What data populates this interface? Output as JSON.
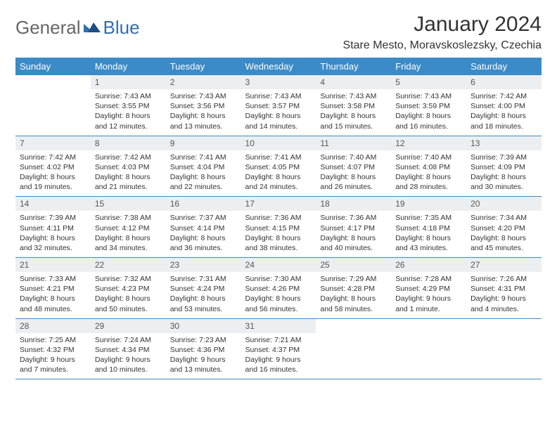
{
  "brand": {
    "part1": "General",
    "part2": "Blue"
  },
  "title": "January 2024",
  "location": "Stare Mesto, Moravskoslezsky, Czechia",
  "colors": {
    "header_bg": "#3b8bc8",
    "header_fg": "#ffffff",
    "daynum_bg": "#eceff1",
    "row_border": "#3b8bc8",
    "brand_gray": "#666666",
    "brand_blue": "#2f6fb0",
    "text": "#333333",
    "background": "#ffffff"
  },
  "calendar": {
    "type": "table",
    "columns": [
      "Sunday",
      "Monday",
      "Tuesday",
      "Wednesday",
      "Thursday",
      "Friday",
      "Saturday"
    ],
    "weeks": [
      [
        null,
        {
          "n": "1",
          "sr": "Sunrise: 7:43 AM",
          "ss": "Sunset: 3:55 PM",
          "dl1": "Daylight: 8 hours",
          "dl2": "and 12 minutes."
        },
        {
          "n": "2",
          "sr": "Sunrise: 7:43 AM",
          "ss": "Sunset: 3:56 PM",
          "dl1": "Daylight: 8 hours",
          "dl2": "and 13 minutes."
        },
        {
          "n": "3",
          "sr": "Sunrise: 7:43 AM",
          "ss": "Sunset: 3:57 PM",
          "dl1": "Daylight: 8 hours",
          "dl2": "and 14 minutes."
        },
        {
          "n": "4",
          "sr": "Sunrise: 7:43 AM",
          "ss": "Sunset: 3:58 PM",
          "dl1": "Daylight: 8 hours",
          "dl2": "and 15 minutes."
        },
        {
          "n": "5",
          "sr": "Sunrise: 7:43 AM",
          "ss": "Sunset: 3:59 PM",
          "dl1": "Daylight: 8 hours",
          "dl2": "and 16 minutes."
        },
        {
          "n": "6",
          "sr": "Sunrise: 7:42 AM",
          "ss": "Sunset: 4:00 PM",
          "dl1": "Daylight: 8 hours",
          "dl2": "and 18 minutes."
        }
      ],
      [
        {
          "n": "7",
          "sr": "Sunrise: 7:42 AM",
          "ss": "Sunset: 4:02 PM",
          "dl1": "Daylight: 8 hours",
          "dl2": "and 19 minutes."
        },
        {
          "n": "8",
          "sr": "Sunrise: 7:42 AM",
          "ss": "Sunset: 4:03 PM",
          "dl1": "Daylight: 8 hours",
          "dl2": "and 21 minutes."
        },
        {
          "n": "9",
          "sr": "Sunrise: 7:41 AM",
          "ss": "Sunset: 4:04 PM",
          "dl1": "Daylight: 8 hours",
          "dl2": "and 22 minutes."
        },
        {
          "n": "10",
          "sr": "Sunrise: 7:41 AM",
          "ss": "Sunset: 4:05 PM",
          "dl1": "Daylight: 8 hours",
          "dl2": "and 24 minutes."
        },
        {
          "n": "11",
          "sr": "Sunrise: 7:40 AM",
          "ss": "Sunset: 4:07 PM",
          "dl1": "Daylight: 8 hours",
          "dl2": "and 26 minutes."
        },
        {
          "n": "12",
          "sr": "Sunrise: 7:40 AM",
          "ss": "Sunset: 4:08 PM",
          "dl1": "Daylight: 8 hours",
          "dl2": "and 28 minutes."
        },
        {
          "n": "13",
          "sr": "Sunrise: 7:39 AM",
          "ss": "Sunset: 4:09 PM",
          "dl1": "Daylight: 8 hours",
          "dl2": "and 30 minutes."
        }
      ],
      [
        {
          "n": "14",
          "sr": "Sunrise: 7:39 AM",
          "ss": "Sunset: 4:11 PM",
          "dl1": "Daylight: 8 hours",
          "dl2": "and 32 minutes."
        },
        {
          "n": "15",
          "sr": "Sunrise: 7:38 AM",
          "ss": "Sunset: 4:12 PM",
          "dl1": "Daylight: 8 hours",
          "dl2": "and 34 minutes."
        },
        {
          "n": "16",
          "sr": "Sunrise: 7:37 AM",
          "ss": "Sunset: 4:14 PM",
          "dl1": "Daylight: 8 hours",
          "dl2": "and 36 minutes."
        },
        {
          "n": "17",
          "sr": "Sunrise: 7:36 AM",
          "ss": "Sunset: 4:15 PM",
          "dl1": "Daylight: 8 hours",
          "dl2": "and 38 minutes."
        },
        {
          "n": "18",
          "sr": "Sunrise: 7:36 AM",
          "ss": "Sunset: 4:17 PM",
          "dl1": "Daylight: 8 hours",
          "dl2": "and 40 minutes."
        },
        {
          "n": "19",
          "sr": "Sunrise: 7:35 AM",
          "ss": "Sunset: 4:18 PM",
          "dl1": "Daylight: 8 hours",
          "dl2": "and 43 minutes."
        },
        {
          "n": "20",
          "sr": "Sunrise: 7:34 AM",
          "ss": "Sunset: 4:20 PM",
          "dl1": "Daylight: 8 hours",
          "dl2": "and 45 minutes."
        }
      ],
      [
        {
          "n": "21",
          "sr": "Sunrise: 7:33 AM",
          "ss": "Sunset: 4:21 PM",
          "dl1": "Daylight: 8 hours",
          "dl2": "and 48 minutes."
        },
        {
          "n": "22",
          "sr": "Sunrise: 7:32 AM",
          "ss": "Sunset: 4:23 PM",
          "dl1": "Daylight: 8 hours",
          "dl2": "and 50 minutes."
        },
        {
          "n": "23",
          "sr": "Sunrise: 7:31 AM",
          "ss": "Sunset: 4:24 PM",
          "dl1": "Daylight: 8 hours",
          "dl2": "and 53 minutes."
        },
        {
          "n": "24",
          "sr": "Sunrise: 7:30 AM",
          "ss": "Sunset: 4:26 PM",
          "dl1": "Daylight: 8 hours",
          "dl2": "and 56 minutes."
        },
        {
          "n": "25",
          "sr": "Sunrise: 7:29 AM",
          "ss": "Sunset: 4:28 PM",
          "dl1": "Daylight: 8 hours",
          "dl2": "and 58 minutes."
        },
        {
          "n": "26",
          "sr": "Sunrise: 7:28 AM",
          "ss": "Sunset: 4:29 PM",
          "dl1": "Daylight: 9 hours",
          "dl2": "and 1 minute."
        },
        {
          "n": "27",
          "sr": "Sunrise: 7:26 AM",
          "ss": "Sunset: 4:31 PM",
          "dl1": "Daylight: 9 hours",
          "dl2": "and 4 minutes."
        }
      ],
      [
        {
          "n": "28",
          "sr": "Sunrise: 7:25 AM",
          "ss": "Sunset: 4:32 PM",
          "dl1": "Daylight: 9 hours",
          "dl2": "and 7 minutes."
        },
        {
          "n": "29",
          "sr": "Sunrise: 7:24 AM",
          "ss": "Sunset: 4:34 PM",
          "dl1": "Daylight: 9 hours",
          "dl2": "and 10 minutes."
        },
        {
          "n": "30",
          "sr": "Sunrise: 7:23 AM",
          "ss": "Sunset: 4:36 PM",
          "dl1": "Daylight: 9 hours",
          "dl2": "and 13 minutes."
        },
        {
          "n": "31",
          "sr": "Sunrise: 7:21 AM",
          "ss": "Sunset: 4:37 PM",
          "dl1": "Daylight: 9 hours",
          "dl2": "and 16 minutes."
        },
        null,
        null,
        null
      ]
    ]
  }
}
